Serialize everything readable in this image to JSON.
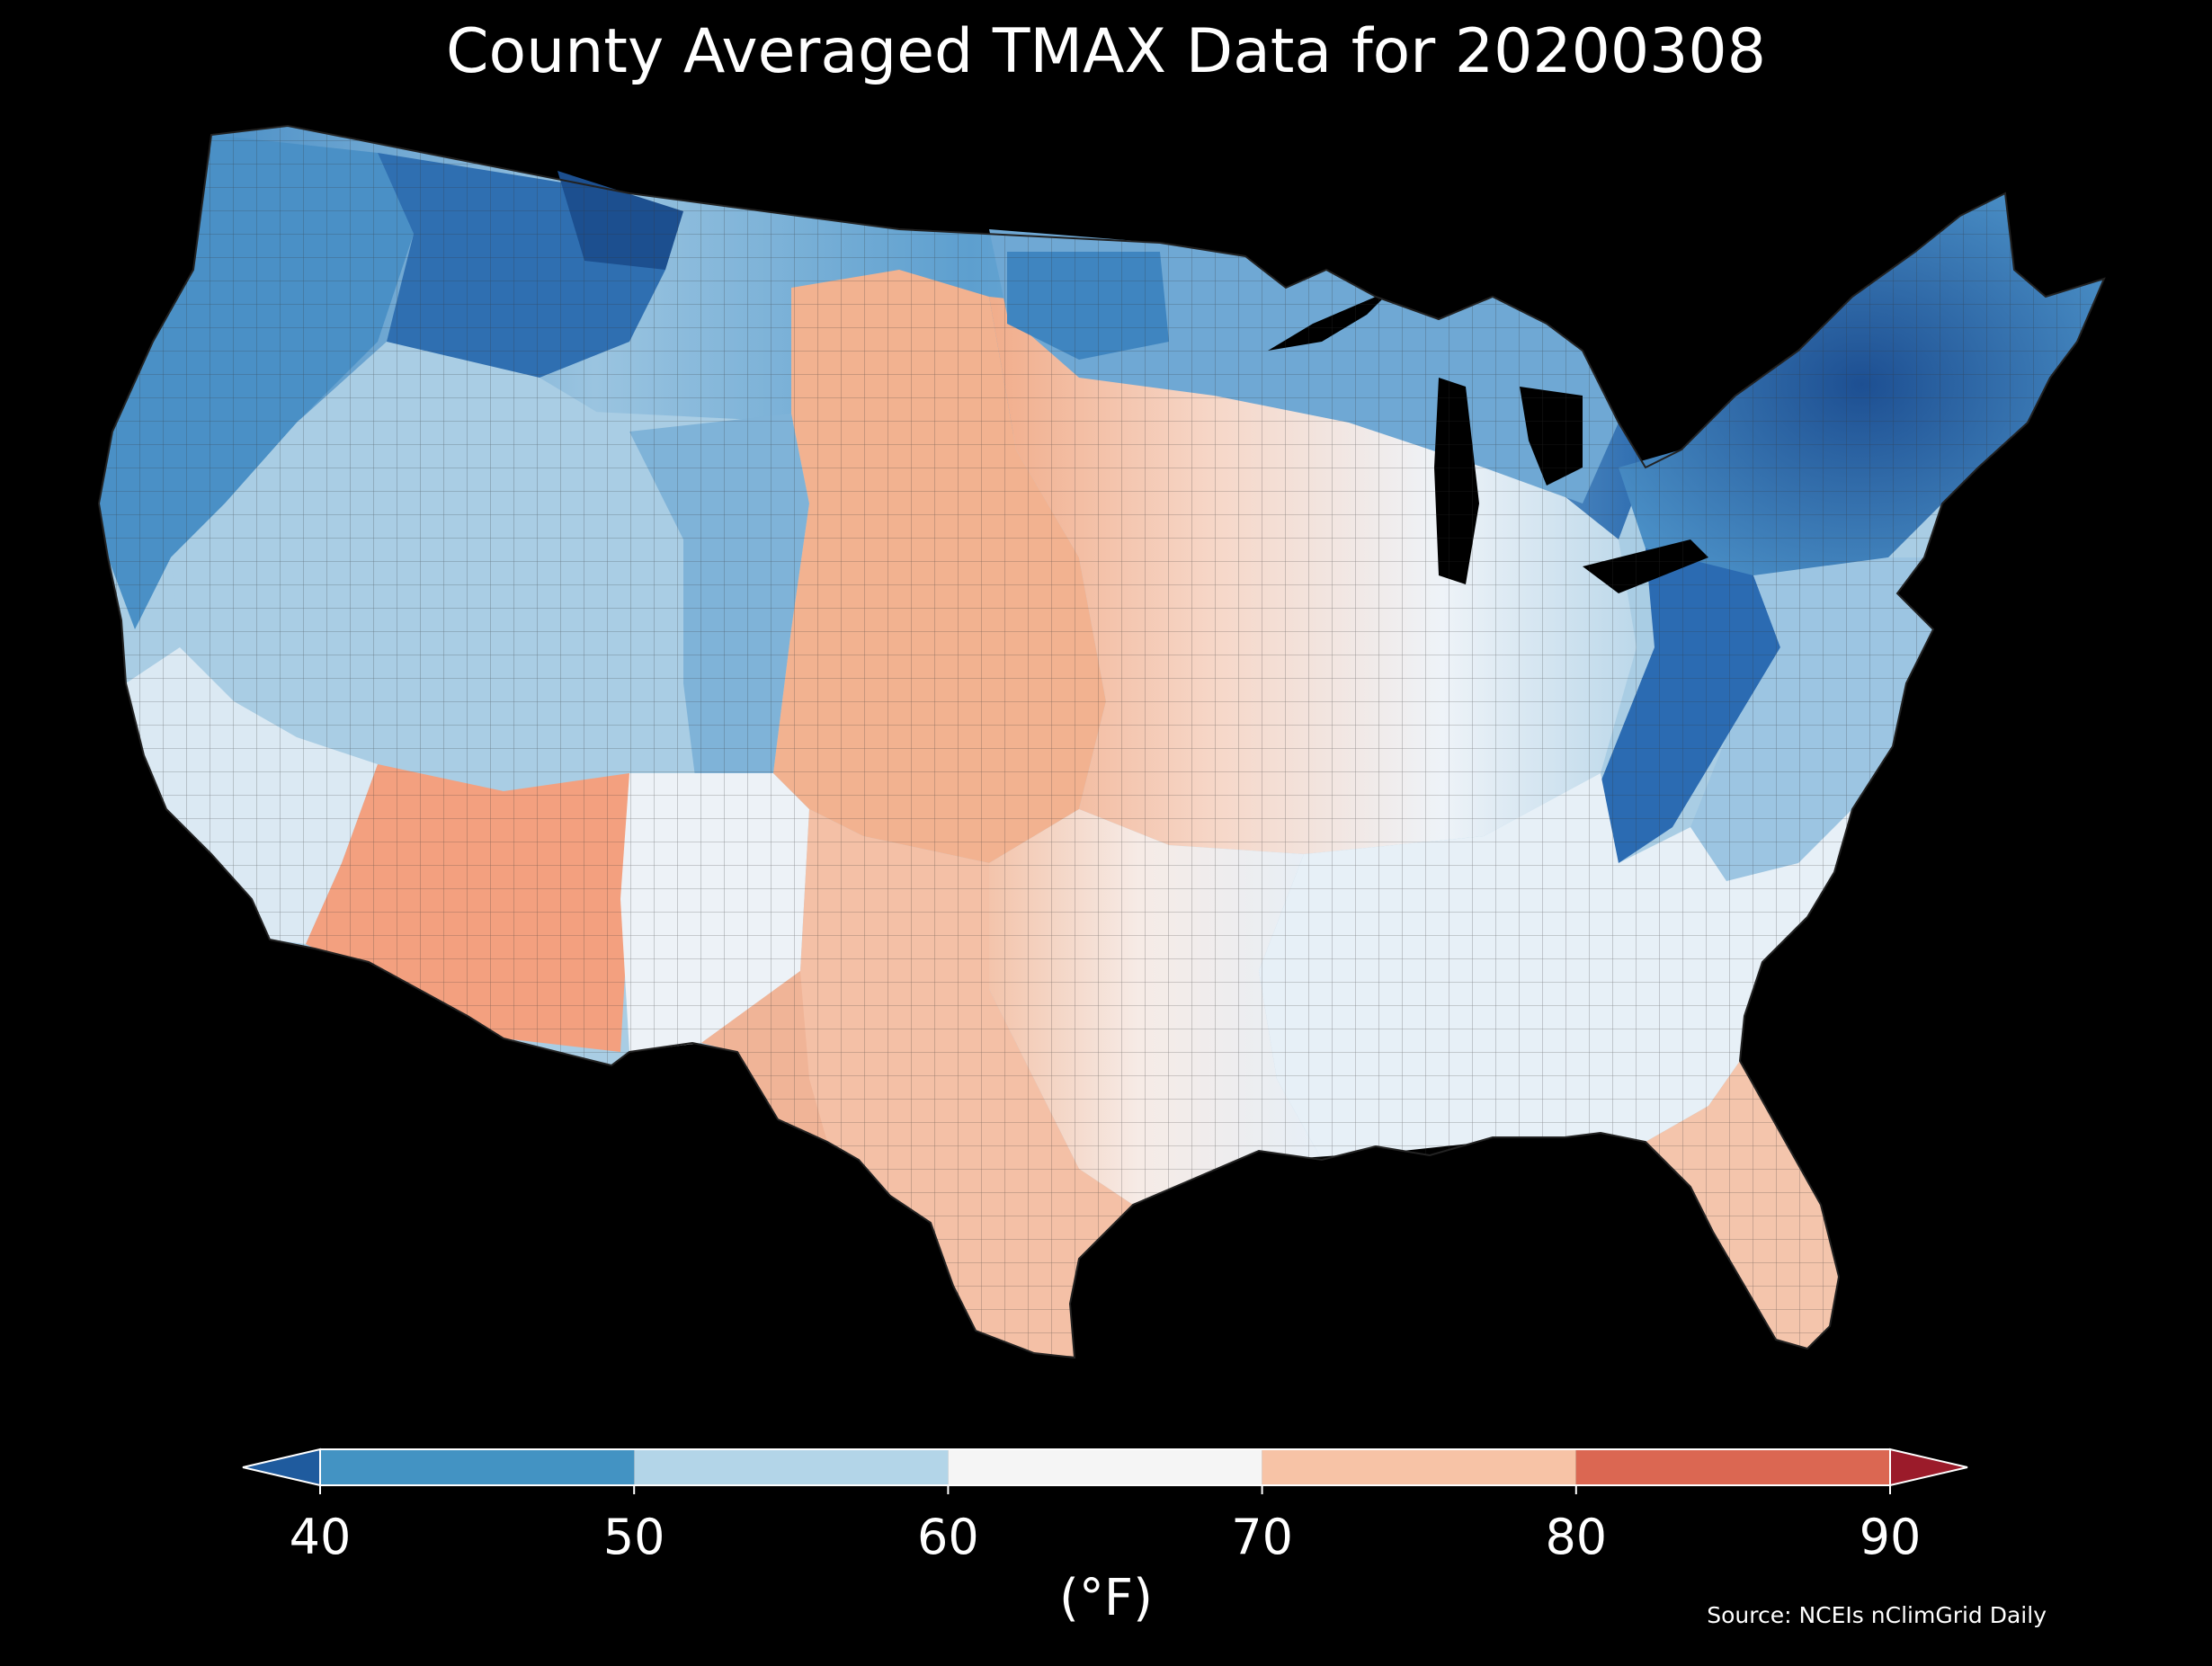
{
  "title": "County Averaged TMAX Data for 20200308",
  "colorbar": {
    "ticks": [
      "40",
      "50",
      "60",
      "70",
      "80",
      "90"
    ],
    "units": "(°F)",
    "bins": [
      {
        "range": "<40",
        "color": "#1f5b9e"
      },
      {
        "range": "40-50",
        "color": "#4393c3"
      },
      {
        "range": "50-60",
        "color": "#b3d5e8"
      },
      {
        "range": "60-70",
        "color": "#f5f5f5"
      },
      {
        "range": "70-80",
        "color": "#f7c3a6"
      },
      {
        "range": "80-90",
        "color": "#db6752"
      },
      {
        "range": ">90",
        "color": "#9b1b2a"
      }
    ]
  },
  "source": "Source: NCEIs nClimGrid Daily",
  "regions": [
    {
      "name": "pacific-northwest",
      "color": "#4a90c6"
    },
    {
      "name": "northern-rockies",
      "color": "#2f6fb1"
    },
    {
      "name": "great-basin",
      "color": "#a9cde4"
    },
    {
      "name": "southwest-desert",
      "color": "#f3a07f"
    },
    {
      "name": "southern-california",
      "color": "#f6dcd0"
    },
    {
      "name": "high-plains",
      "color": "#f2b290"
    },
    {
      "name": "upper-midwest",
      "color": "#7fb3d8"
    },
    {
      "name": "northeast",
      "color": "#1d5aa0"
    },
    {
      "name": "appalachians",
      "color": "#2b6bb2"
    },
    {
      "name": "southeast",
      "color": "#e7f0f7"
    },
    {
      "name": "texas",
      "color": "#f4c0a6"
    },
    {
      "name": "florida",
      "color": "#f4c5ac"
    }
  ]
}
